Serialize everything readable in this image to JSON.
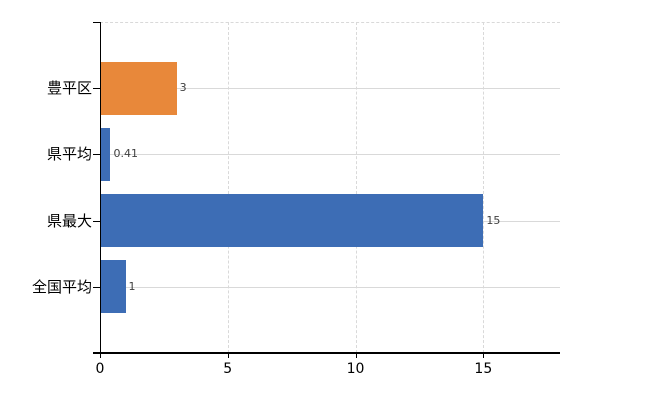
{
  "chart_data": {
    "type": "bar",
    "orientation": "horizontal",
    "title": "",
    "xlabel": "",
    "ylabel": "",
    "categories": [
      "豊平区",
      "県平均",
      "県最大",
      "全国平均"
    ],
    "values": [
      3,
      0.41,
      15,
      1
    ],
    "data_labels": [
      "3",
      "0.41",
      "15",
      "1"
    ],
    "bar_colors": [
      "#E8883A",
      "#3D6DB5",
      "#3D6DB5",
      "#3D6DB5"
    ],
    "xlim": [
      0,
      18
    ],
    "xticks": [
      0,
      5,
      10,
      15
    ],
    "xtick_labels": [
      "0",
      "5",
      "10",
      "15"
    ],
    "grid": true,
    "legend": false,
    "colors": {
      "background": "#FFFFFF",
      "axis": "#000000",
      "gridline": "#D9D9D9",
      "data_label": "#404040",
      "tick_label": "#000000"
    }
  }
}
